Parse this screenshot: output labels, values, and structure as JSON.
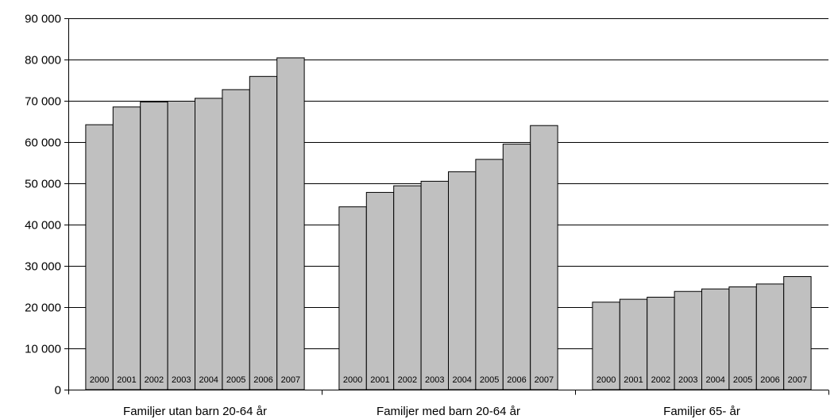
{
  "chart_data": {
    "type": "bar",
    "categories": [
      "Familjer utan barn 20-64 år",
      "Familjer med barn 20-64 år",
      "Familjer 65- år"
    ],
    "bar_labels": [
      "2000",
      "2001",
      "2002",
      "2003",
      "2004",
      "2005",
      "2006",
      "2007"
    ],
    "groups": [
      {
        "category": "Familjer utan barn 20-64 år",
        "values": [
          64200,
          68500,
          69700,
          69900,
          70600,
          72700,
          75900,
          80400
        ]
      },
      {
        "category": "Familjer med barn 20-64 år",
        "values": [
          44300,
          47800,
          49400,
          50500,
          52800,
          55800,
          59500,
          64000
        ]
      },
      {
        "category": "Familjer 65- år",
        "values": [
          21200,
          21900,
          22400,
          23800,
          24400,
          24900,
          25600,
          27400
        ]
      }
    ],
    "ylim": [
      0,
      90000
    ],
    "yticks": [
      0,
      10000,
      20000,
      30000,
      40000,
      50000,
      60000,
      70000,
      80000,
      90000
    ],
    "ytick_labels": [
      "0",
      "10 000",
      "20 000",
      "30 000",
      "40 000",
      "50 000",
      "60 000",
      "70 000",
      "80 000",
      "90 000"
    ],
    "grid": true,
    "bar_color": "#c0c0c0",
    "title": "",
    "xlabel": "",
    "ylabel": ""
  }
}
